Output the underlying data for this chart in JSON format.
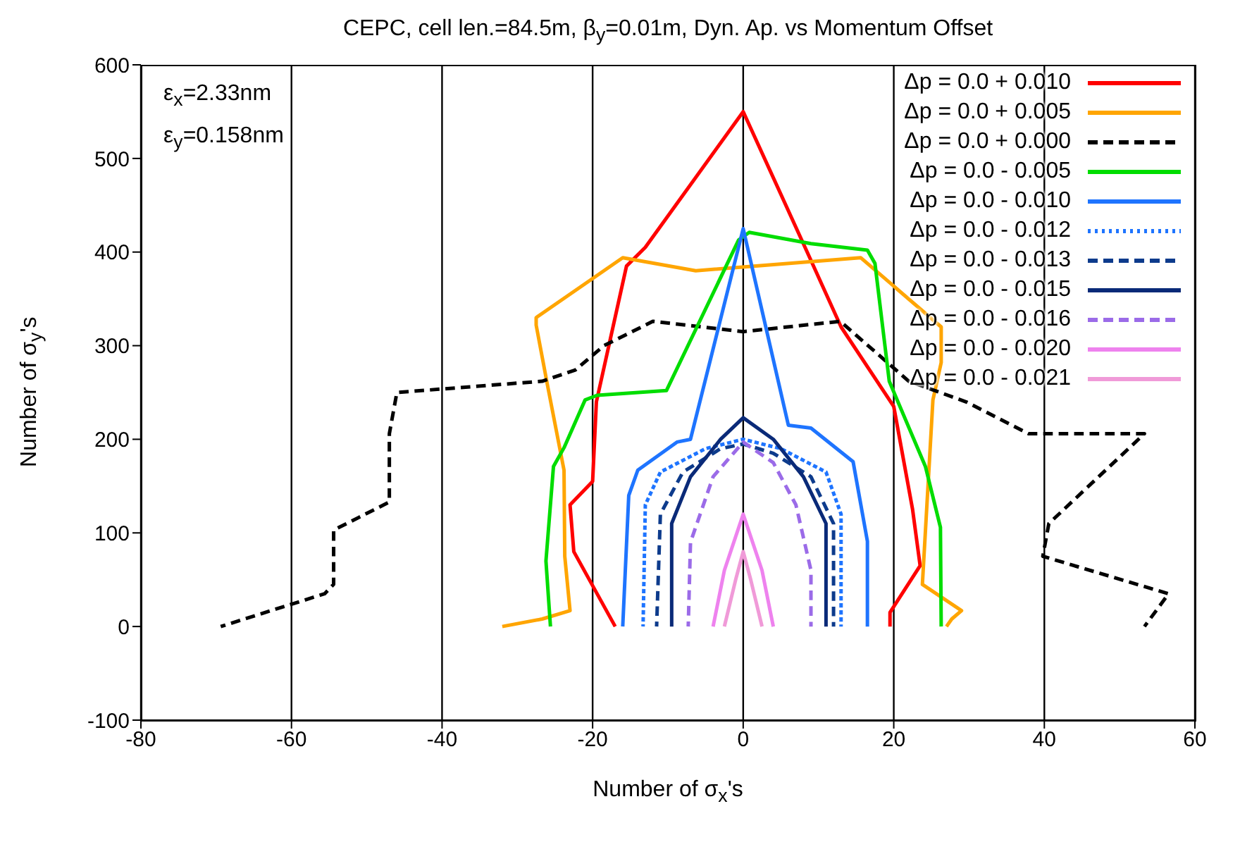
{
  "chart_data": {
    "type": "line",
    "title": "CEPC, cell len.=84.5m, β$_{y}$=0.01m, Dyn. Ap. vs Momentum Offset",
    "xlabel": "Number of σ$_{x}$'s",
    "ylabel": "Number of σ$_{y}$'s",
    "annotations": [
      "ε$_{x}$=2.33nm",
      "ε$_{y}$=0.158nm"
    ],
    "xlim": [
      -80,
      60
    ],
    "xticks": [
      -80,
      -60,
      -40,
      -20,
      0,
      20,
      40,
      60
    ],
    "ylim": [
      -100,
      600
    ],
    "yticks": [
      -100,
      0,
      100,
      200,
      300,
      400,
      500,
      600
    ],
    "grid": true,
    "legend": "top right",
    "marker": "none",
    "series": [
      {
        "name": "Δp = 0.0 + 0.010",
        "color": "#ff0000",
        "line_style": "solid",
        "x": [
          -17,
          -22.5,
          -23,
          -20,
          -19.5,
          -15.5,
          -13,
          0,
          8.5,
          13,
          20,
          22.5,
          23.5,
          19.5,
          19.5
        ],
        "values": [
          0,
          80,
          130,
          155,
          240,
          385,
          405,
          550,
          400,
          320,
          235,
          125,
          65,
          15,
          0
        ]
      },
      {
        "name": "Δp = 0.0 + 0.005",
        "color": "#ffa500",
        "line_style": "solid",
        "x": [
          -32,
          -26.7,
          -23,
          -23.7,
          -23.8,
          -26,
          -27.5,
          -27.5,
          -16,
          -6.3,
          15.6,
          26.3,
          26.3,
          25.2,
          23.8,
          29,
          27.7,
          27
        ],
        "values": [
          0,
          8,
          17,
          75,
          167,
          258,
          322,
          330,
          394,
          380,
          394,
          320,
          282,
          242,
          45,
          17,
          8,
          0
        ]
      },
      {
        "name": "Δp = 0.0 + 0.000",
        "color": "#000000",
        "line_style": "dashed",
        "x": [
          -69.4,
          -55.6,
          -54.4,
          -54.4,
          -47,
          -47,
          -46,
          -26.7,
          -22.3,
          -18.5,
          -12,
          0,
          12.9,
          22,
          29.6,
          37.9,
          53.3,
          40.6,
          39.8,
          56.5,
          53.3
        ],
        "values": [
          0,
          35,
          45,
          103,
          133,
          206,
          250,
          262,
          274,
          300,
          326,
          315,
          326,
          262,
          240,
          206,
          206,
          110,
          75,
          35,
          0
        ]
      },
      {
        "name": "Δp = 0.0 - 0.005",
        "color": "#00dd00",
        "line_style": "solid",
        "x": [
          -25.6,
          -26.2,
          -25.2,
          -23.8,
          -21,
          -19.4,
          -10.2,
          -0.6,
          0.8,
          9,
          16.5,
          17.5,
          19.4,
          24.2,
          26.2,
          26.3
        ],
        "values": [
          0,
          70,
          171,
          191,
          242,
          247,
          252,
          413,
          421,
          409,
          402,
          388,
          262,
          171,
          106,
          0
        ]
      },
      {
        "name": "Δp = 0.0 - 0.010",
        "color": "#1e74ff",
        "line_style": "solid",
        "x": [
          -16,
          -15.2,
          -14,
          -8.8,
          -7,
          0,
          6,
          9,
          14.6,
          16.5,
          16.5
        ],
        "values": [
          0,
          140,
          167,
          197,
          200,
          425,
          215,
          212,
          176,
          91,
          0
        ]
      },
      {
        "name": "Δp = 0.0 - 0.012",
        "color": "#1e74ff",
        "line_style": "dotted",
        "x": [
          -13.3,
          -13,
          -11,
          -5,
          0,
          5,
          11,
          13,
          13
        ],
        "values": [
          0,
          130,
          165,
          190,
          200,
          190,
          165,
          120,
          0
        ]
      },
      {
        "name": "Δp = 0.0 - 0.013",
        "color": "#0d3b8c",
        "line_style": "dashed",
        "x": [
          -11.5,
          -11,
          -8,
          -3,
          0,
          4,
          9,
          12,
          12
        ],
        "values": [
          0,
          120,
          165,
          190,
          195,
          185,
          160,
          110,
          0
        ]
      },
      {
        "name": "Δp = 0.0 - 0.015",
        "color": "#0a2a78",
        "line_style": "solid",
        "x": [
          -9.5,
          -9.5,
          -7,
          -3,
          0,
          4,
          8,
          11,
          11
        ],
        "values": [
          0,
          110,
          160,
          200,
          223,
          200,
          160,
          110,
          0
        ]
      },
      {
        "name": "Δp = 0.0 - 0.016",
        "color": "#9b6be8",
        "line_style": "dashed",
        "x": [
          -7.3,
          -7,
          -4,
          0,
          4,
          7,
          9,
          9
        ],
        "values": [
          0,
          90,
          160,
          197,
          175,
          130,
          60,
          0
        ]
      },
      {
        "name": "Δp = 0.0 - 0.020",
        "color": "#ee82ee",
        "line_style": "solid",
        "x": [
          -4,
          -2.5,
          0,
          2.5,
          4
        ],
        "values": [
          0,
          60,
          120,
          60,
          0
        ]
      },
      {
        "name": "Δp = 0.0 - 0.021",
        "color": "#f09ad8",
        "line_style": "solid",
        "x": [
          -2.5,
          -1,
          0,
          1,
          2.5
        ],
        "values": [
          0,
          50,
          80,
          50,
          0
        ]
      }
    ]
  }
}
